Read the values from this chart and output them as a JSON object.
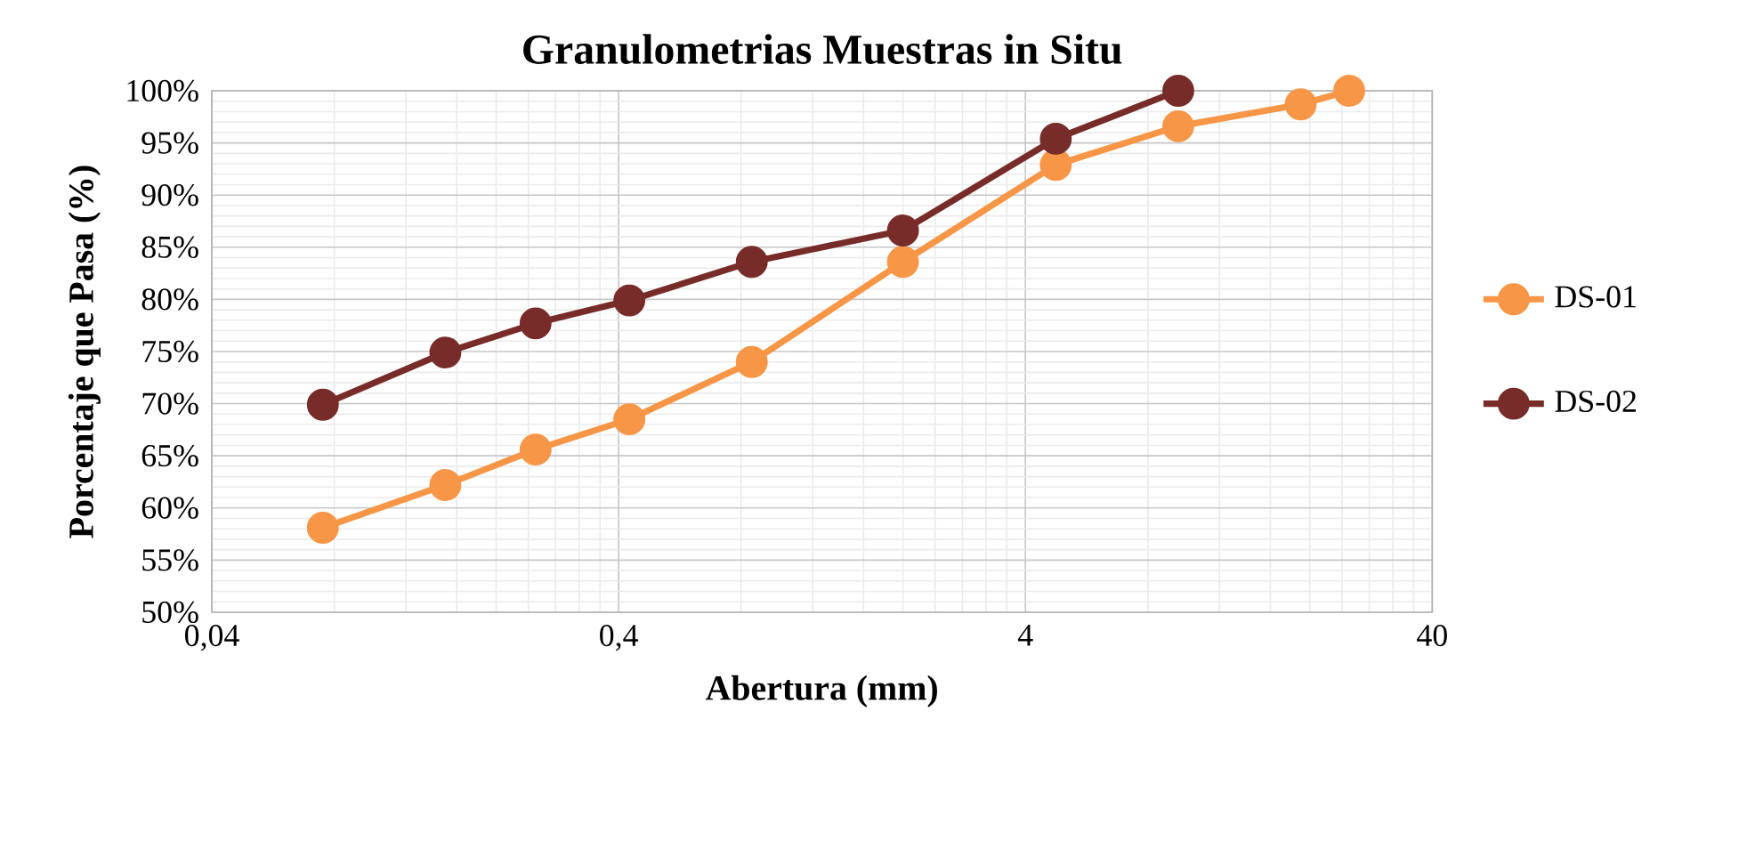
{
  "chart_data": {
    "type": "line",
    "title": "Granulometrias Muestras in Situ",
    "xlabel": "Abertura (mm)",
    "ylabel": "Porcentaje que Pasa (%)",
    "log": "x",
    "xlim": [
      0.04,
      40
    ],
    "xticks": [
      {
        "value": 0.04,
        "label": "0,04"
      },
      {
        "value": 0.4,
        "label": "0,4"
      },
      4,
      40
    ],
    "ylim": [
      50,
      100
    ],
    "yticks": [
      {
        "value": 50,
        "label": "50%"
      },
      {
        "value": 55,
        "label": "55%"
      },
      {
        "value": 60,
        "label": "60%"
      },
      {
        "value": 65,
        "label": "65%"
      },
      {
        "value": 70,
        "label": "70%"
      },
      {
        "value": 75,
        "label": "75%"
      },
      {
        "value": 80,
        "label": "80%"
      },
      {
        "value": 85,
        "label": "85%"
      },
      {
        "value": 90,
        "label": "90%"
      },
      {
        "value": 95,
        "label": "95%"
      },
      {
        "value": 100,
        "label": "100%"
      }
    ],
    "grid": true,
    "legend": "right",
    "marker": "circle",
    "line_style": "solid",
    "series": [
      {
        "name": "DS-01",
        "color": "#f79646",
        "x": [
          0.075,
          0.15,
          0.25,
          0.425,
          0.85,
          2.0,
          4.75,
          9.5,
          19,
          25
        ],
        "values": [
          58.1,
          62.2,
          65.6,
          68.5,
          74.0,
          83.6,
          92.9,
          96.6,
          98.7,
          100
        ]
      },
      {
        "name": "DS-02",
        "color": "#772c2a",
        "x": [
          0.075,
          0.15,
          0.25,
          0.425,
          0.85,
          2.0,
          4.75,
          9.5
        ],
        "values": [
          69.9,
          74.9,
          77.7,
          79.9,
          83.6,
          86.6,
          95.4,
          100
        ]
      }
    ]
  }
}
